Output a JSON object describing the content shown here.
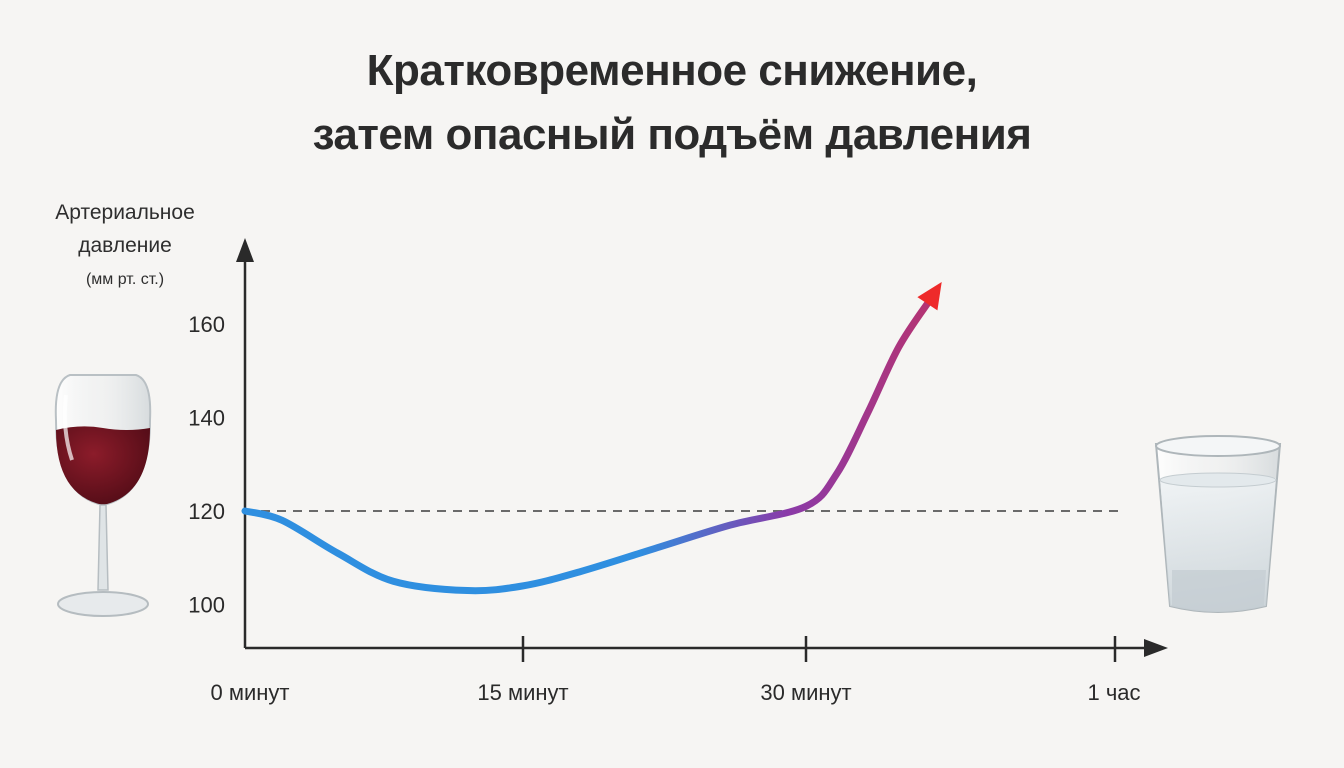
{
  "chart_data": {
    "type": "line",
    "title": [
      "Кратковременное снижение,",
      "затем опасный подъём давления"
    ],
    "ylabel": [
      "Артериальное",
      "давление",
      "(мм рт. ст.)"
    ],
    "xlabel": "",
    "x_ticks": [
      {
        "value": 0,
        "label": "0 минут"
      },
      {
        "value": 15,
        "label": "15 минут"
      },
      {
        "value": 30,
        "label": "30 минут"
      },
      {
        "value": 60,
        "label": "1 час"
      }
    ],
    "y_ticks": [
      100,
      120,
      140,
      160
    ],
    "reference_line": {
      "y": 120,
      "style": "dashed"
    },
    "series": [
      {
        "x": [
          0,
          2,
          5,
          8,
          12,
          15,
          18,
          22,
          26,
          30,
          33,
          36,
          39,
          42
        ],
        "y": [
          120,
          118,
          111,
          105,
          103,
          104,
          107,
          112,
          117,
          121,
          128,
          141,
          155,
          165
        ]
      }
    ],
    "colors": {
      "start": "#2f8fe0",
      "mid": "#8a3aa8",
      "end": "#ee2a2a",
      "axis": "#2a2a2a",
      "reference": "#6a6a6a"
    },
    "decorations": [
      "wine-glass-icon",
      "shot-glass-icon"
    ]
  }
}
